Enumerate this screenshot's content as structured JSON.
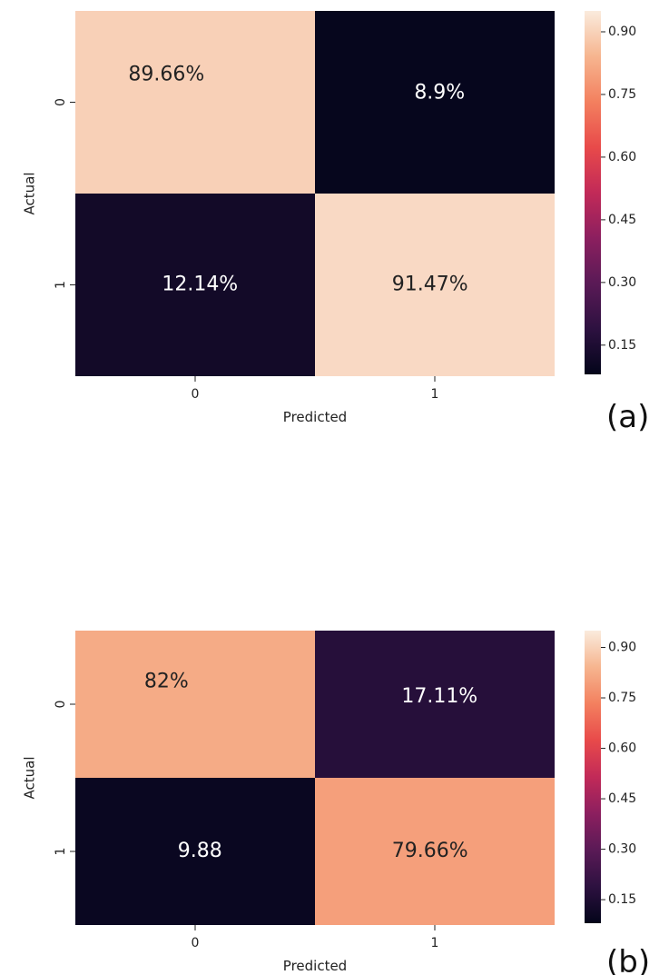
{
  "colors": {
    "colormap": [
      "#03051a",
      "#2d1140",
      "#5a1a56",
      "#8c1f5f",
      "#c22a58",
      "#e84a4a",
      "#f3805f",
      "#f6b58f",
      "#faebdd"
    ],
    "text_dark": "#222222",
    "text_light": "#ffffff"
  },
  "chart_data": [
    {
      "type": "heatmap",
      "panel_label": "(a)",
      "xlabel": "Predicted",
      "ylabel": "Actual",
      "x_categories": [
        "0",
        "1"
      ],
      "y_categories": [
        "0",
        "1"
      ],
      "values": [
        [
          0.8966,
          0.089
        ],
        [
          0.1214,
          0.9147
        ]
      ],
      "annotations": [
        [
          "89.66%",
          "8.9%"
        ],
        [
          "12.14%",
          "91.47%"
        ]
      ],
      "colorbar": {
        "range": [
          0.08,
          0.95
        ],
        "ticks": [
          0.15,
          0.3,
          0.45,
          0.6,
          0.75,
          0.9
        ],
        "tick_labels": [
          "0.15",
          "0.30",
          "0.45",
          "0.60",
          "0.75",
          "0.90"
        ]
      }
    },
    {
      "type": "heatmap",
      "panel_label": "(b)",
      "xlabel": "Predicted",
      "ylabel": "Actual",
      "x_categories": [
        "0",
        "1"
      ],
      "y_categories": [
        "0",
        "1"
      ],
      "values": [
        [
          0.82,
          0.1711
        ],
        [
          0.0988,
          0.7966
        ]
      ],
      "annotations": [
        [
          "82%",
          "17.11%"
        ],
        [
          "9.88",
          "79.66%"
        ]
      ],
      "colorbar": {
        "range": [
          0.08,
          0.95
        ],
        "ticks": [
          0.15,
          0.3,
          0.45,
          0.6,
          0.75,
          0.9
        ],
        "tick_labels": [
          "0.15",
          "0.30",
          "0.45",
          "0.60",
          "0.75",
          "0.90"
        ]
      }
    }
  ]
}
